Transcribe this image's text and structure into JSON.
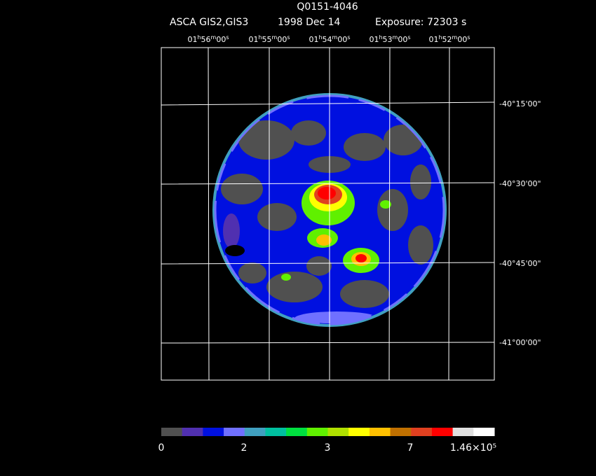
{
  "header": {
    "title": "Q0151-4046",
    "instrument": "ASCA GIS2,GIS3",
    "date": "1998 Dec 14",
    "exposure": "Exposure: 72303 s"
  },
  "ra_labels": [
    "01h56m00s",
    "01h55m00s",
    "01h54m00s",
    "01h53m00s",
    "01h52m00s"
  ],
  "dec_labels": [
    "-40°15'00\"",
    "-40°30'00\"",
    "-40°45'00\"",
    "-41°00'00\""
  ],
  "colorbar": {
    "colors": [
      "#505050",
      "#5030b0",
      "#0010e0",
      "#7070ff",
      "#40a0c0",
      "#00c0a0",
      "#00e040",
      "#60f000",
      "#b0e000",
      "#ffff00",
      "#ffc000",
      "#c07000",
      "#e04020",
      "#ff0000",
      "#e0e0e0",
      "#ffffff"
    ],
    "labels": [
      "0",
      "2",
      "3",
      "7",
      "1.46×10⁵"
    ]
  }
}
